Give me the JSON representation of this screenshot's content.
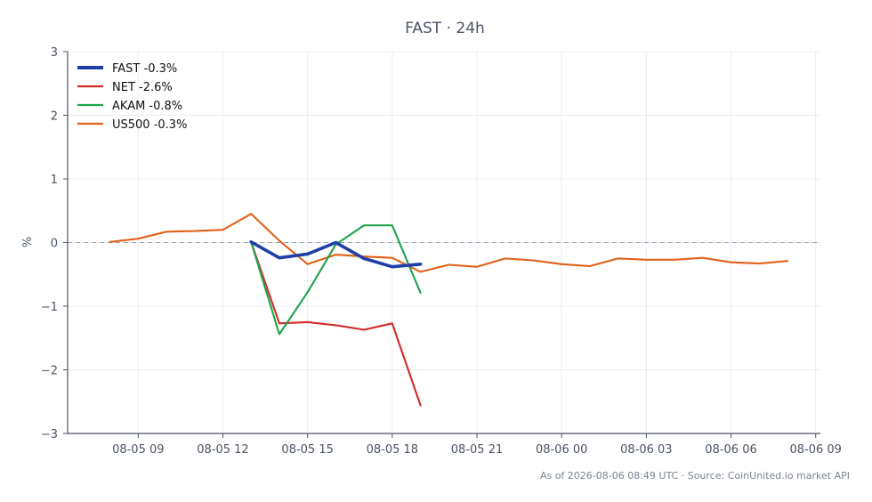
{
  "chart_data": {
    "type": "line",
    "title": "FAST · 24h",
    "xlabel": "",
    "ylabel": "%",
    "ylim": [
      -3,
      3
    ],
    "yticks": [
      3,
      2,
      1,
      0,
      -1,
      -2,
      -3
    ],
    "ytick_labels": [
      "3",
      "2",
      "1",
      "0",
      "−1",
      "−2",
      "−3"
    ],
    "xlim": [
      "2026-08-05 06:30",
      "2026-08-06 09:10"
    ],
    "xticks": [
      "2026-08-05 09:00",
      "2026-08-05 12:00",
      "2026-08-05 15:00",
      "2026-08-05 18:00",
      "2026-08-05 21:00",
      "2026-08-06 00:00",
      "2026-08-06 03:00",
      "2026-08-06 06:00",
      "2026-08-06 09:00"
    ],
    "xtick_labels": [
      "08-05 09",
      "08-05 12",
      "08-05 15",
      "08-05 18",
      "08-05 21",
      "08-06 00",
      "08-06 03",
      "08-06 06",
      "08-06 09"
    ],
    "grid": true,
    "reference_line": 0,
    "legend_position": "top-left",
    "series": [
      {
        "name": "FAST -0.3%",
        "color": "#1f3fa6",
        "bold": true,
        "x": [
          "2026-08-05 13:00",
          "2026-08-05 14:00",
          "2026-08-05 15:00",
          "2026-08-05 16:00",
          "2026-08-05 17:00",
          "2026-08-05 18:00",
          "2026-08-05 19:00"
        ],
        "y": [
          0.01,
          -0.24,
          -0.18,
          0.0,
          -0.25,
          -0.38,
          -0.34
        ]
      },
      {
        "name": "NET -2.6%",
        "color": "#d42a2a",
        "bold": false,
        "x": [
          "2026-08-05 13:00",
          "2026-08-05 14:00",
          "2026-08-05 15:00",
          "2026-08-05 16:00",
          "2026-08-05 17:00",
          "2026-08-05 18:00",
          "2026-08-05 19:00"
        ],
        "y": [
          0.01,
          -1.27,
          -1.25,
          -1.3,
          -1.37,
          -1.27,
          -2.56
        ]
      },
      {
        "name": "AKAM -0.8%",
        "color": "#1ea34a",
        "bold": false,
        "x": [
          "2026-08-05 13:00",
          "2026-08-05 14:00",
          "2026-08-05 15:00",
          "2026-08-05 16:00",
          "2026-08-05 17:00",
          "2026-08-05 18:00",
          "2026-08-05 19:00"
        ],
        "y": [
          0.01,
          -1.44,
          -0.78,
          -0.03,
          0.27,
          0.27,
          -0.79
        ]
      },
      {
        "name": "US500 -0.3%",
        "color": "#e0611a",
        "bold": false,
        "x": [
          "2026-08-05 08:00",
          "2026-08-05 09:00",
          "2026-08-05 10:00",
          "2026-08-05 11:00",
          "2026-08-05 12:00",
          "2026-08-05 13:00",
          "2026-08-05 14:00",
          "2026-08-05 15:00",
          "2026-08-05 16:00",
          "2026-08-05 17:00",
          "2026-08-05 18:00",
          "2026-08-05 19:00",
          "2026-08-05 20:00",
          "2026-08-05 21:00",
          "2026-08-05 22:00",
          "2026-08-05 23:00",
          "2026-08-06 00:00",
          "2026-08-06 01:00",
          "2026-08-06 02:00",
          "2026-08-06 03:00",
          "2026-08-06 04:00",
          "2026-08-06 05:00",
          "2026-08-06 06:00",
          "2026-08-06 07:00",
          "2026-08-06 08:00"
        ],
        "y": [
          0.01,
          0.06,
          0.17,
          0.18,
          0.2,
          0.45,
          0.03,
          -0.34,
          -0.19,
          -0.22,
          -0.24,
          -0.46,
          -0.35,
          -0.38,
          -0.25,
          -0.28,
          -0.34,
          -0.37,
          -0.25,
          -0.27,
          -0.27,
          -0.24,
          -0.31,
          -0.33,
          -0.29
        ]
      }
    ],
    "footer": "As of 2026-08-06 08:49 UTC · Source: CoinUnited.io market API"
  }
}
